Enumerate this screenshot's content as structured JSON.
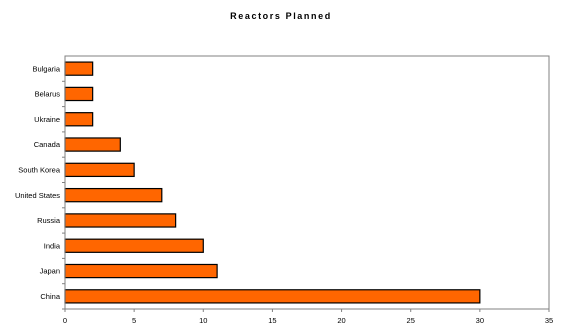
{
  "chart_data": {
    "type": "bar",
    "orientation": "horizontal",
    "title": "Reactors Planned",
    "xlabel": "",
    "ylabel": "",
    "categories": [
      "China",
      "Japan",
      "India",
      "Russia",
      "United States",
      "South Korea",
      "Canada",
      "Ukraine",
      "Belarus",
      "Bulgaria"
    ],
    "values": [
      30,
      11,
      10,
      8,
      7,
      5,
      4,
      2,
      2,
      2
    ],
    "xlim": [
      0,
      35
    ],
    "xticks": [
      0,
      5,
      10,
      15,
      20,
      25,
      30,
      35
    ],
    "grid": false,
    "legend": "none",
    "colors": {
      "bar_fill": "#FF6600",
      "bar_stroke": "#000000",
      "axis": "#808080",
      "frame": "#808080"
    }
  }
}
